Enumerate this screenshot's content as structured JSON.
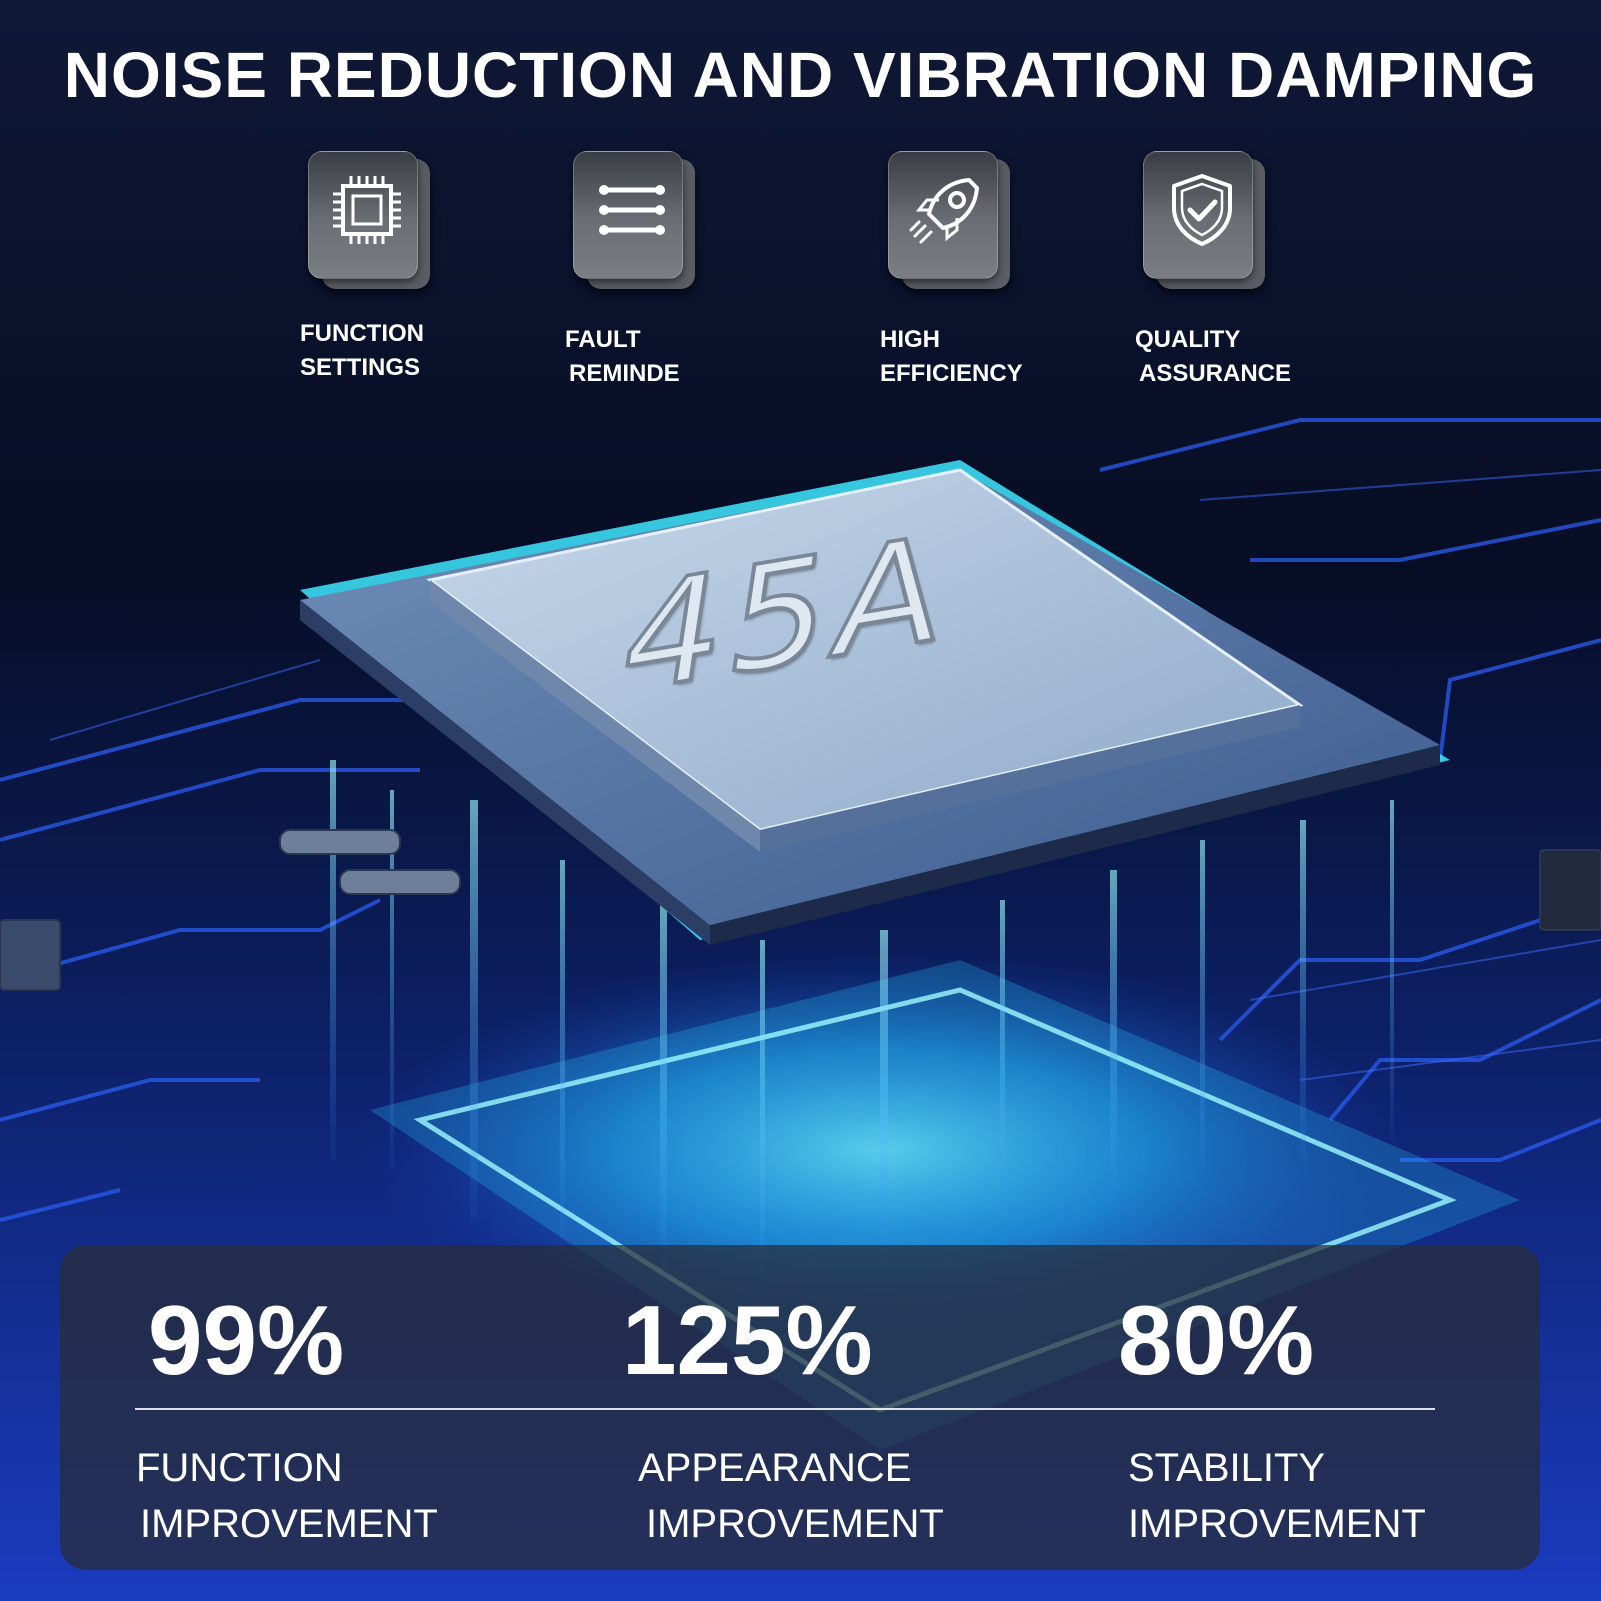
{
  "title": "NOISE REDUCTION AND VIBRATION DAMPING",
  "features": [
    {
      "icon": "cpu-chip-icon",
      "line1": "FUNCTION",
      "line2": "SETTINGS"
    },
    {
      "icon": "list-lines-icon",
      "line1": "FAULT",
      "line2": "REMINDE"
    },
    {
      "icon": "rocket-icon",
      "line1": "HIGH",
      "line2": "EFFICIENCY"
    },
    {
      "icon": "shield-check-icon",
      "line1": "QUALITY",
      "line2": "ASSURANCE"
    }
  ],
  "chip_label": "45A",
  "stats": [
    {
      "value": "99%",
      "line1": "FUNCTION",
      "line2": "IMPROVEMENT"
    },
    {
      "value": "125%",
      "line1": "APPEARANCE",
      "line2": "IMPROVEMENT"
    },
    {
      "value": "80%",
      "line1": "STABILITY",
      "line2": "IMPROVEMENT"
    }
  ],
  "colors": {
    "background": "#0a1430",
    "circuit": "#1f4bd6",
    "glow": "#3ee6ff",
    "chip": "#9fb8d8"
  }
}
